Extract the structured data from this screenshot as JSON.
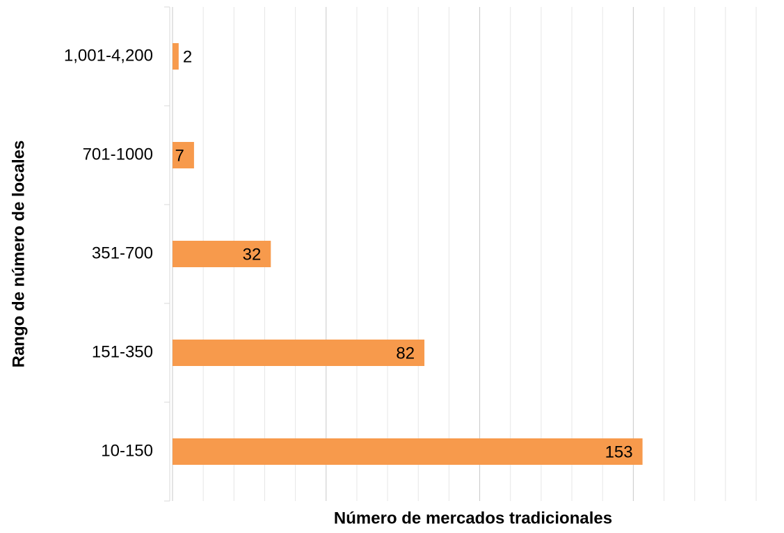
{
  "chart_data": {
    "type": "barh",
    "categories": [
      "1,001-4,200",
      "701-1000",
      "351-700",
      "151-350",
      "10-150"
    ],
    "values": [
      2,
      7,
      32,
      82,
      153
    ],
    "color": "#f79a4c",
    "xlabel": "Número de mercados tradicionales",
    "ylabel": "Rango de número de locales",
    "xlim": [
      0,
      190
    ],
    "xticks": [
      0,
      10,
      20,
      30,
      40,
      50,
      60,
      70,
      80,
      90,
      100,
      110,
      120,
      130,
      140,
      150,
      160,
      170,
      180,
      190
    ],
    "major_xticks": [
      0,
      50,
      100,
      150
    ],
    "grid": true
  }
}
